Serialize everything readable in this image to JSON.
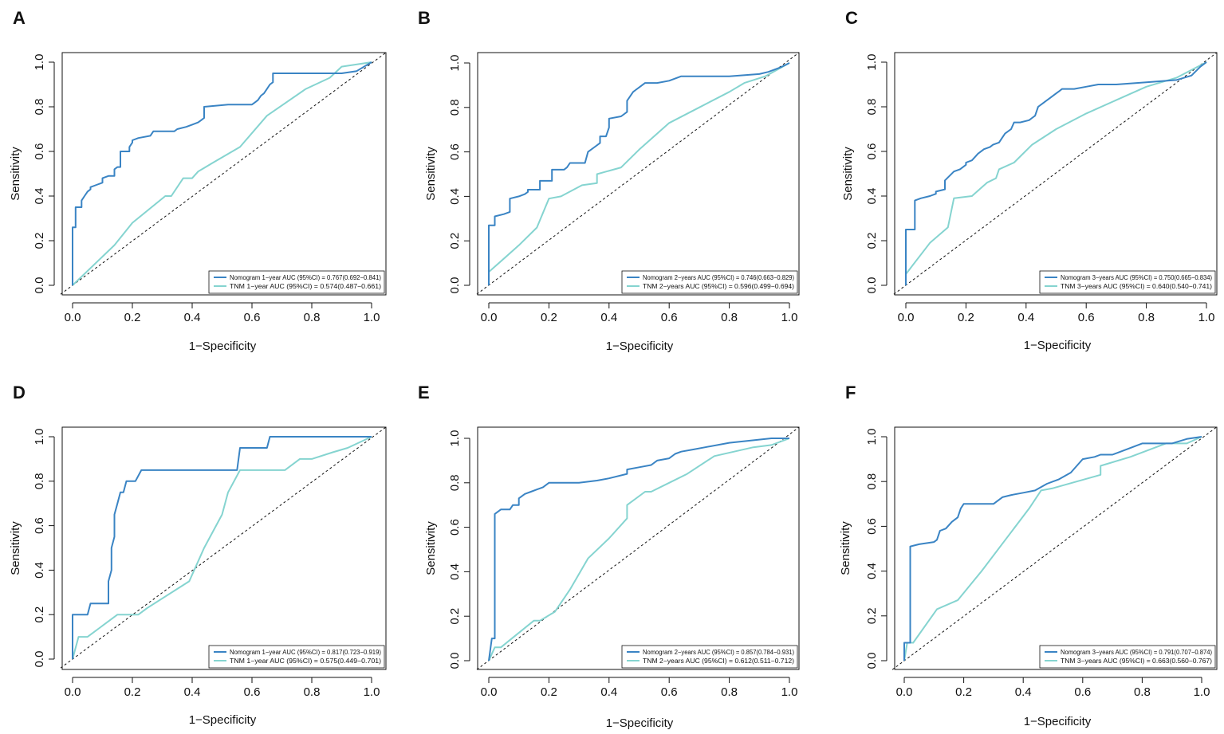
{
  "figure": {
    "colors": {
      "nomogram": "#3a84c4",
      "tnm": "#85d4d0",
      "reference": "#111111"
    }
  },
  "chart_data": [
    {
      "panel": "A",
      "type": "line",
      "xlabel": "1−Specificity",
      "ylabel": "Sensitivity",
      "xlim": [
        0,
        1
      ],
      "ylim": [
        0,
        1
      ],
      "xticks": [
        "0.0",
        "0.2",
        "0.4",
        "0.6",
        "0.8",
        "1.0"
      ],
      "yticks": [
        "0.0",
        "0.2",
        "0.4",
        "0.6",
        "0.8",
        "1.0"
      ],
      "legend_position": "bottom-right",
      "series": [
        {
          "name": "Nomogram 1−year AUC (95%CI) = 0.767(0.692−0.841)",
          "color": "#3a84c4",
          "x": [
            0,
            0,
            0.01,
            0.01,
            0.03,
            0.03,
            0.04,
            0.05,
            0.06,
            0.06,
            0.08,
            0.1,
            0.1,
            0.12,
            0.14,
            0.14,
            0.15,
            0.16,
            0.16,
            0.19,
            0.19,
            0.2,
            0.2,
            0.22,
            0.26,
            0.27,
            0.34,
            0.35,
            0.38,
            0.4,
            0.42,
            0.43,
            0.44,
            0.44,
            0.52,
            0.6,
            0.61,
            0.62,
            0.63,
            0.64,
            0.65,
            0.66,
            0.67,
            0.67,
            0.7,
            0.8,
            0.9,
            0.95,
            1.0
          ],
          "y": [
            0,
            0.26,
            0.26,
            0.35,
            0.35,
            0.38,
            0.4,
            0.42,
            0.43,
            0.44,
            0.45,
            0.46,
            0.48,
            0.49,
            0.49,
            0.52,
            0.53,
            0.53,
            0.6,
            0.6,
            0.62,
            0.64,
            0.65,
            0.66,
            0.67,
            0.69,
            0.69,
            0.7,
            0.71,
            0.72,
            0.73,
            0.74,
            0.75,
            0.8,
            0.81,
            0.81,
            0.82,
            0.83,
            0.85,
            0.86,
            0.88,
            0.9,
            0.91,
            0.95,
            0.95,
            0.95,
            0.95,
            0.96,
            1.0
          ]
        },
        {
          "name": "TNM 1−year AUC (95%CI) = 0.574(0.487−0.661)",
          "color": "#85d4d0",
          "x": [
            0,
            0.14,
            0.2,
            0.31,
            0.33,
            0.37,
            0.4,
            0.42,
            0.47,
            0.56,
            0.65,
            0.78,
            0.86,
            0.9,
            1.0
          ],
          "y": [
            0,
            0.18,
            0.28,
            0.4,
            0.4,
            0.48,
            0.48,
            0.51,
            0.55,
            0.62,
            0.76,
            0.88,
            0.93,
            0.98,
            1.0
          ]
        }
      ]
    },
    {
      "panel": "B",
      "type": "line",
      "xlabel": "1−Specificity",
      "ylabel": "Sensitivity",
      "xlim": [
        0,
        1
      ],
      "ylim": [
        0,
        1
      ],
      "xticks": [
        "0.0",
        "0.2",
        "0.4",
        "0.6",
        "0.8",
        "1.0"
      ],
      "yticks": [
        "0.0",
        "0.2",
        "0.4",
        "0.6",
        "0.8",
        "1.0"
      ],
      "legend_position": "bottom-right",
      "series": [
        {
          "name": "Nomogram 2−years AUC (95%CI) = 0.746(0.663−0.829)",
          "color": "#3a84c4",
          "x": [
            0,
            0,
            0.02,
            0.02,
            0.05,
            0.07,
            0.07,
            0.1,
            0.12,
            0.13,
            0.13,
            0.17,
            0.17,
            0.21,
            0.21,
            0.25,
            0.26,
            0.27,
            0.32,
            0.33,
            0.35,
            0.37,
            0.37,
            0.39,
            0.4,
            0.4,
            0.44,
            0.46,
            0.46,
            0.48,
            0.49,
            0.5,
            0.52,
            0.56,
            0.6,
            0.6,
            0.64,
            0.7,
            0.8,
            0.9,
            0.93,
            0.97,
            1.0
          ],
          "y": [
            0,
            0.27,
            0.27,
            0.31,
            0.32,
            0.33,
            0.39,
            0.4,
            0.41,
            0.42,
            0.43,
            0.43,
            0.47,
            0.47,
            0.52,
            0.52,
            0.53,
            0.55,
            0.55,
            0.6,
            0.62,
            0.64,
            0.67,
            0.67,
            0.71,
            0.75,
            0.76,
            0.78,
            0.83,
            0.87,
            0.88,
            0.89,
            0.91,
            0.91,
            0.92,
            0.92,
            0.94,
            0.94,
            0.94,
            0.95,
            0.96,
            0.98,
            1.0
          ]
        },
        {
          "name": "TNM 2−years AUC (95%CI) = 0.596(0.499−0.694)",
          "color": "#85d4d0",
          "x": [
            0,
            0.1,
            0.16,
            0.2,
            0.24,
            0.31,
            0.36,
            0.36,
            0.44,
            0.5,
            0.6,
            0.7,
            0.8,
            0.85,
            0.92,
            1.0
          ],
          "y": [
            0.06,
            0.18,
            0.26,
            0.39,
            0.4,
            0.45,
            0.46,
            0.5,
            0.53,
            0.61,
            0.73,
            0.8,
            0.87,
            0.91,
            0.94,
            1.0
          ]
        }
      ]
    },
    {
      "panel": "C",
      "type": "line",
      "xlabel": "1−Specificity",
      "ylabel": "Sensitivity",
      "xlim": [
        0,
        1
      ],
      "ylim": [
        0,
        1
      ],
      "xticks": [
        "0.0",
        "0.2",
        "0.4",
        "0.6",
        "0.8",
        "1.0"
      ],
      "yticks": [
        "0.0",
        "0.2",
        "0.4",
        "0.6",
        "0.8",
        "1.0"
      ],
      "legend_position": "bottom-right",
      "series": [
        {
          "name": "Nomogram 3−years AUC (95%CI) = 0.750(0.665−0.834)",
          "color": "#3a84c4",
          "x": [
            0,
            0,
            0.03,
            0.03,
            0.05,
            0.08,
            0.1,
            0.1,
            0.13,
            0.13,
            0.16,
            0.18,
            0.2,
            0.2,
            0.22,
            0.24,
            0.26,
            0.28,
            0.29,
            0.31,
            0.32,
            0.33,
            0.35,
            0.36,
            0.38,
            0.41,
            0.42,
            0.43,
            0.44,
            0.46,
            0.48,
            0.5,
            0.51,
            0.52,
            0.56,
            0.6,
            0.64,
            0.7,
            0.8,
            0.9,
            0.95,
            0.98,
            1.0
          ],
          "y": [
            0,
            0.25,
            0.25,
            0.38,
            0.39,
            0.4,
            0.41,
            0.42,
            0.43,
            0.47,
            0.51,
            0.52,
            0.54,
            0.55,
            0.56,
            0.59,
            0.61,
            0.62,
            0.63,
            0.64,
            0.66,
            0.68,
            0.7,
            0.73,
            0.73,
            0.74,
            0.75,
            0.76,
            0.8,
            0.82,
            0.84,
            0.86,
            0.87,
            0.88,
            0.88,
            0.89,
            0.9,
            0.9,
            0.91,
            0.92,
            0.94,
            0.98,
            1.0
          ]
        },
        {
          "name": "TNM 3−years AUC (95%CI) = 0.640(0.540−0.741)",
          "color": "#85d4d0",
          "x": [
            0,
            0.08,
            0.14,
            0.16,
            0.22,
            0.27,
            0.3,
            0.31,
            0.36,
            0.42,
            0.5,
            0.6,
            0.7,
            0.8,
            0.9,
            1.0
          ],
          "y": [
            0.05,
            0.19,
            0.26,
            0.39,
            0.4,
            0.46,
            0.48,
            0.52,
            0.55,
            0.63,
            0.7,
            0.77,
            0.83,
            0.89,
            0.93,
            1.0
          ]
        }
      ]
    },
    {
      "panel": "D",
      "type": "line",
      "xlabel": "1−Specificity",
      "ylabel": "Sensitivity",
      "xlim": [
        0,
        1
      ],
      "ylim": [
        0,
        1
      ],
      "xticks": [
        "0.0",
        "0.2",
        "0.4",
        "0.6",
        "0.8",
        "1.0"
      ],
      "yticks": [
        "0.0",
        "0.2",
        "0.4",
        "0.6",
        "0.8",
        "1.0"
      ],
      "legend_position": "bottom-right",
      "series": [
        {
          "name": "Nomogram 1−year AUC (95%CI) = 0.817(0.723−0.919)",
          "color": "#3a84c4",
          "x": [
            0,
            0,
            0.05,
            0.06,
            0.12,
            0.12,
            0.13,
            0.13,
            0.14,
            0.14,
            0.15,
            0.15,
            0.16,
            0.17,
            0.18,
            0.19,
            0.2,
            0.21,
            0.23,
            0.23,
            0.55,
            0.56,
            0.65,
            0.66,
            1.0
          ],
          "y": [
            0,
            0.2,
            0.2,
            0.25,
            0.25,
            0.35,
            0.4,
            0.5,
            0.55,
            0.65,
            0.7,
            0.7,
            0.75,
            0.75,
            0.8,
            0.8,
            0.8,
            0.8,
            0.85,
            0.85,
            0.85,
            0.95,
            0.95,
            1.0,
            1.0
          ]
        },
        {
          "name": "TNM 1−year AUC (95%CI) = 0.575(0.449−0.701)",
          "color": "#85d4d0",
          "x": [
            0,
            0.02,
            0.05,
            0.15,
            0.22,
            0.25,
            0.39,
            0.44,
            0.5,
            0.52,
            0.56,
            0.6,
            0.71,
            0.76,
            0.8,
            0.87,
            0.92,
            1.0
          ],
          "y": [
            0,
            0.1,
            0.1,
            0.2,
            0.2,
            0.23,
            0.35,
            0.5,
            0.65,
            0.75,
            0.85,
            0.85,
            0.85,
            0.9,
            0.9,
            0.93,
            0.95,
            1.0
          ]
        }
      ]
    },
    {
      "panel": "E",
      "type": "line",
      "xlabel": "1−Specificity",
      "ylabel": "Sensitivity",
      "xlim": [
        0,
        1
      ],
      "ylim": [
        0,
        1
      ],
      "xticks": [
        "0.0",
        "0.2",
        "0.4",
        "0.6",
        "0.8",
        "1.0"
      ],
      "yticks": [
        "0.0",
        "0.2",
        "0.4",
        "0.6",
        "0.8",
        "1.0"
      ],
      "legend_position": "bottom-right",
      "series": [
        {
          "name": "Nomogram 2−years AUC (95%CI) = 0.857(0.784−0.931)",
          "color": "#3a84c4",
          "x": [
            0,
            0.01,
            0.02,
            0.02,
            0.04,
            0.07,
            0.08,
            0.1,
            0.1,
            0.12,
            0.14,
            0.16,
            0.18,
            0.2,
            0.22,
            0.3,
            0.36,
            0.4,
            0.46,
            0.46,
            0.5,
            0.54,
            0.56,
            0.6,
            0.62,
            0.64,
            0.68,
            0.72,
            0.8,
            0.94,
            1.0
          ],
          "y": [
            0,
            0.1,
            0.1,
            0.66,
            0.68,
            0.68,
            0.7,
            0.7,
            0.73,
            0.75,
            0.76,
            0.77,
            0.78,
            0.8,
            0.8,
            0.8,
            0.81,
            0.82,
            0.84,
            0.86,
            0.87,
            0.88,
            0.9,
            0.91,
            0.93,
            0.94,
            0.95,
            0.96,
            0.98,
            1.0,
            1.0
          ]
        },
        {
          "name": "TNM 2−years AUC (95%CI) = 0.612(0.511−0.712)",
          "color": "#85d4d0",
          "x": [
            0,
            0.02,
            0.04,
            0.15,
            0.17,
            0.22,
            0.27,
            0.33,
            0.4,
            0.46,
            0.46,
            0.52,
            0.54,
            0.6,
            0.66,
            0.75,
            0.88,
            0.94,
            1.0
          ],
          "y": [
            0,
            0.06,
            0.06,
            0.18,
            0.18,
            0.22,
            0.32,
            0.46,
            0.55,
            0.64,
            0.7,
            0.76,
            0.76,
            0.8,
            0.84,
            0.92,
            0.96,
            0.97,
            1.0
          ]
        }
      ]
    },
    {
      "panel": "F",
      "type": "line",
      "xlabel": "1−Specificity",
      "ylabel": "Sensitivity",
      "xlim": [
        0,
        1
      ],
      "ylim": [
        0,
        1
      ],
      "xticks": [
        "0.0",
        "0.2",
        "0.4",
        "0.6",
        "0.8",
        "1.0"
      ],
      "yticks": [
        "0.0",
        "0.2",
        "0.4",
        "0.6",
        "0.8",
        "1.0"
      ],
      "legend_position": "bottom-right",
      "series": [
        {
          "name": "Nomogram 3−years AUC (95%CI) = 0.791(0.707−0.874)",
          "color": "#3a84c4",
          "x": [
            0,
            0,
            0.02,
            0.02,
            0.05,
            0.1,
            0.11,
            0.12,
            0.14,
            0.16,
            0.18,
            0.19,
            0.2,
            0.22,
            0.3,
            0.33,
            0.36,
            0.4,
            0.44,
            0.48,
            0.5,
            0.52,
            0.56,
            0.6,
            0.64,
            0.66,
            0.7,
            0.74,
            0.8,
            0.9,
            0.95,
            1.0
          ],
          "y": [
            0,
            0.08,
            0.08,
            0.51,
            0.52,
            0.53,
            0.54,
            0.58,
            0.59,
            0.62,
            0.64,
            0.68,
            0.7,
            0.7,
            0.7,
            0.73,
            0.74,
            0.75,
            0.76,
            0.79,
            0.8,
            0.81,
            0.84,
            0.9,
            0.91,
            0.92,
            0.92,
            0.94,
            0.97,
            0.97,
            0.99,
            1.0
          ]
        },
        {
          "name": "TNM 3−years AUC (95%CI) = 0.663(0.560−0.767)",
          "color": "#85d4d0",
          "x": [
            0,
            0.01,
            0.03,
            0.11,
            0.18,
            0.26,
            0.34,
            0.42,
            0.46,
            0.5,
            0.58,
            0.66,
            0.66,
            0.76,
            0.88,
            0.95,
            1.0
          ],
          "y": [
            0,
            0.08,
            0.08,
            0.23,
            0.27,
            0.4,
            0.54,
            0.68,
            0.76,
            0.77,
            0.8,
            0.83,
            0.87,
            0.91,
            0.97,
            0.97,
            1.0
          ]
        }
      ]
    }
  ]
}
